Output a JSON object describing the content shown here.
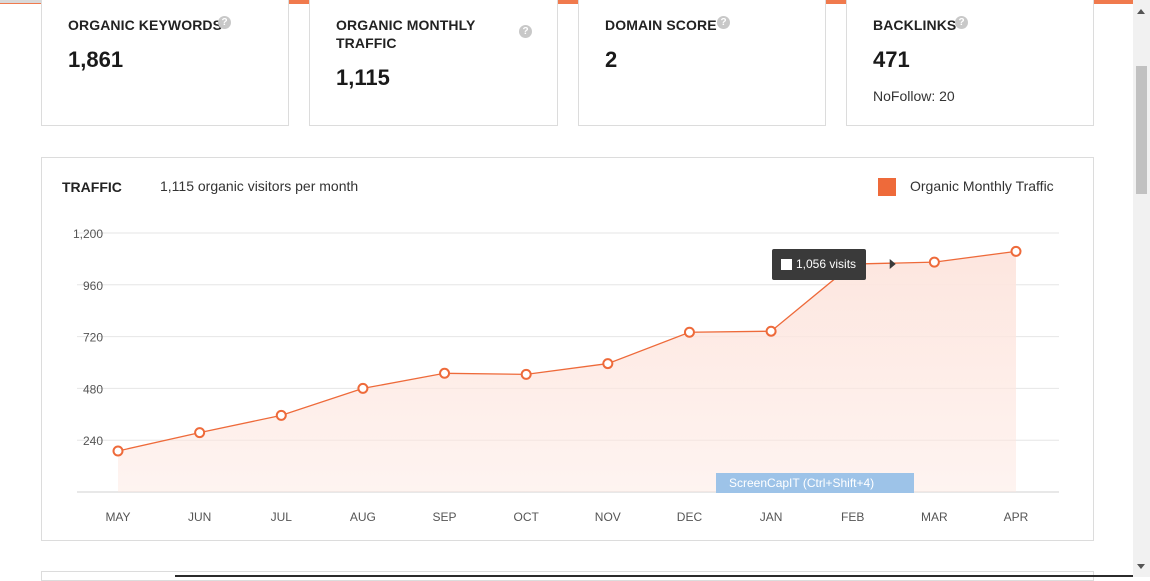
{
  "metrics": [
    {
      "label": "ORGANIC KEYWORDS",
      "value": "1,861",
      "sub": ""
    },
    {
      "label_line1": "ORGANIC MONTHLY",
      "label_line2": "TRAFFIC",
      "value": "1,115"
    },
    {
      "label": "DOMAIN SCORE",
      "value": "2"
    },
    {
      "label": "BACKLINKS",
      "value": "471",
      "sub": "NoFollow: 20"
    }
  ],
  "help_glyph": "?",
  "traffic": {
    "title": "TRAFFIC",
    "subtitle": "1,115 organic visitors per month",
    "legend_label": "Organic Monthly Traffic",
    "tooltip": "1,056 visits"
  },
  "screencap_label": "ScreenCapIT  (Ctrl+Shift+4)",
  "colors": {
    "accent": "#ee6a3a",
    "fill": "#fde6df",
    "grid": "#e6e6e6"
  },
  "chart_data": {
    "type": "area",
    "categories": [
      "MAY",
      "JUN",
      "JUL",
      "AUG",
      "SEP",
      "OCT",
      "NOV",
      "DEC",
      "JAN",
      "FEB",
      "MAR",
      "APR"
    ],
    "series": [
      {
        "name": "Organic Monthly Traffic",
        "values": [
          190,
          275,
          355,
          480,
          550,
          545,
          595,
          740,
          745,
          1056,
          1065,
          1115
        ]
      }
    ],
    "yticks": [
      240,
      480,
      720,
      960,
      1200
    ],
    "ylim": [
      0,
      1200
    ]
  }
}
